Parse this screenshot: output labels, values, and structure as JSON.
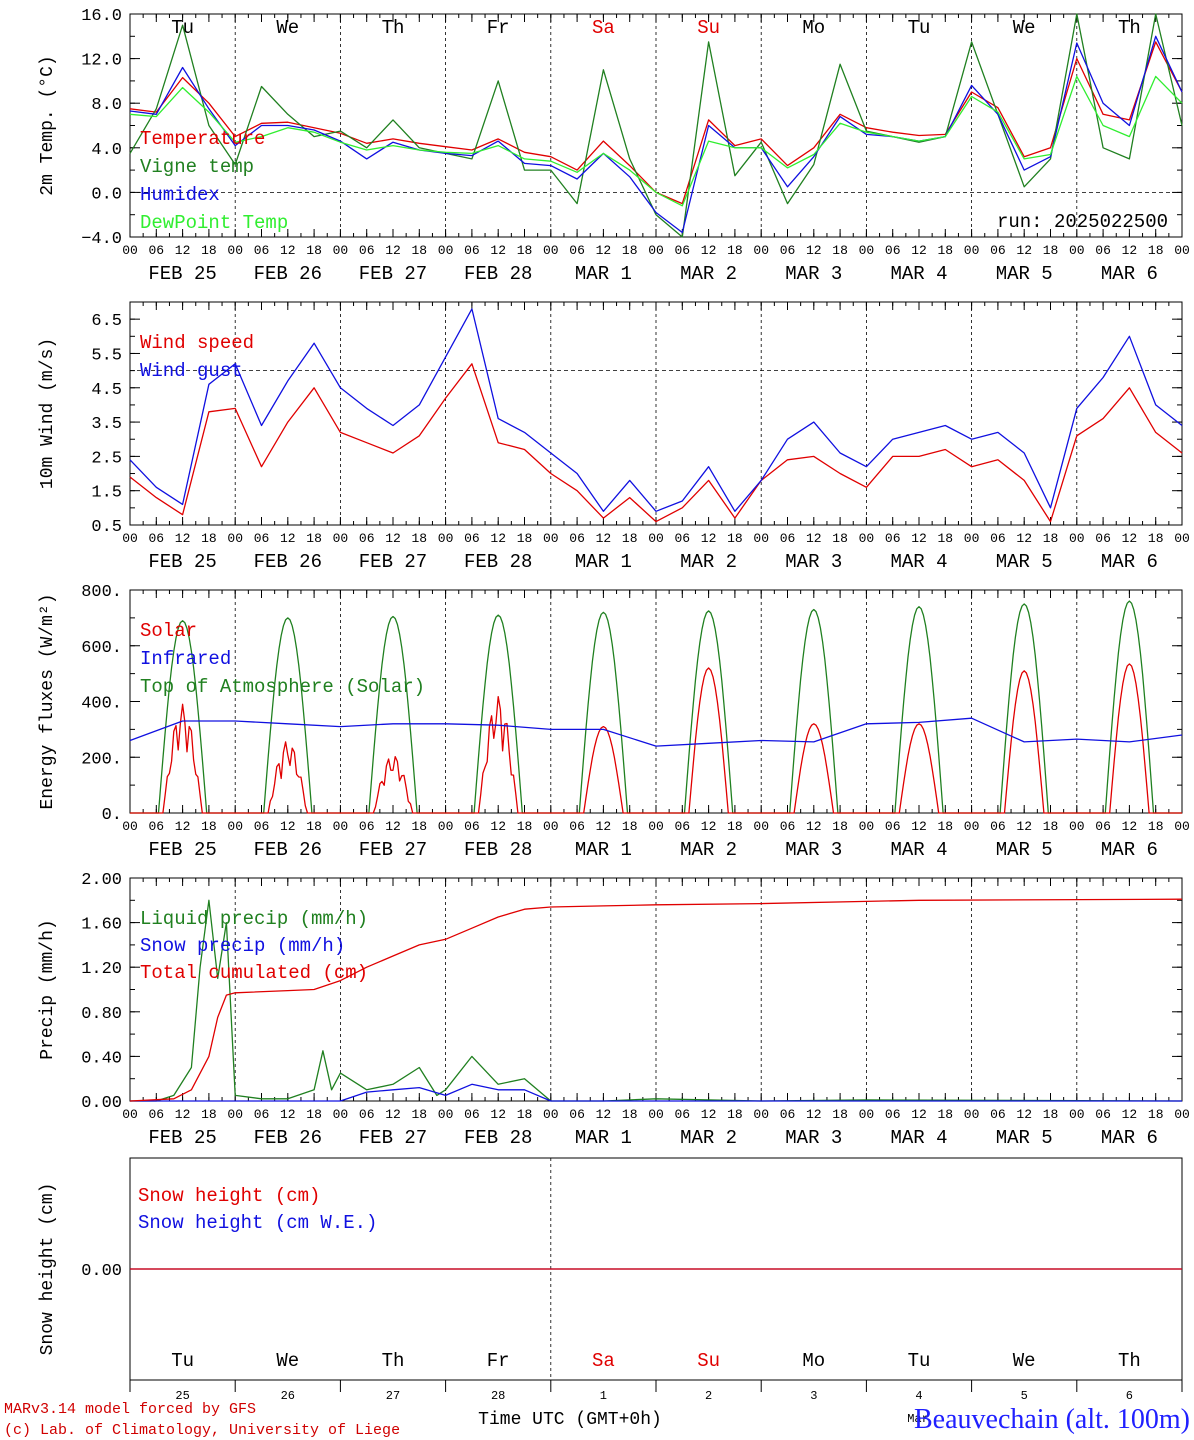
{
  "colors": {
    "red": "#e00000",
    "green": "#208020",
    "blue": "#1010e0",
    "lime": "#30ee30",
    "axis": "#000000",
    "site": "#2020ff"
  },
  "hour_ticks": [
    "00",
    "06",
    "12",
    "18"
  ],
  "final_tick": "00",
  "date_labels": [
    "FEB 25",
    "FEB 26",
    "FEB 27",
    "FEB 28",
    "MAR  1",
    "MAR  2",
    "MAR  3",
    "MAR  4",
    "MAR  5",
    "MAR  6"
  ],
  "weekdays": [
    {
      "label": "Tu",
      "weekend": false
    },
    {
      "label": "We",
      "weekend": false
    },
    {
      "label": "Th",
      "weekend": false
    },
    {
      "label": "Fr",
      "weekend": false
    },
    {
      "label": "Sa",
      "weekend": true
    },
    {
      "label": "Su",
      "weekend": true
    },
    {
      "label": "Mo",
      "weekend": false
    },
    {
      "label": "Tu",
      "weekend": false
    },
    {
      "label": "We",
      "weekend": false
    },
    {
      "label": "Th",
      "weekend": false
    }
  ],
  "day_numbers": [
    "25",
    "26",
    "27",
    "28",
    "1",
    "2",
    "3",
    "4",
    "5",
    "6"
  ],
  "footer": {
    "model": "MARv3.14 model forced by GFS",
    "copyright": "(c) Lab. of Climatology, University of Liege",
    "time_label": "Time UTC (GMT+0h)",
    "month_label": "Mar",
    "site": "Beauvechain (alt. 100m)"
  },
  "chart_data": [
    {
      "type": "line",
      "ylabel": "2m Temp. (°C)",
      "ylim": [
        -4,
        16
      ],
      "yticks": [
        "−4.0",
        "0.0",
        "4.0",
        "8.0",
        "12.0",
        "16.0"
      ],
      "annotation": "run: 2025022500",
      "x_unit": "hours since 2025-02-25 00 UTC",
      "series": [
        {
          "name": "Temperature",
          "color": "red",
          "x": [
            0,
            6,
            12,
            18,
            24,
            30,
            36,
            42,
            48,
            54,
            60,
            66,
            72,
            78,
            84,
            90,
            96,
            102,
            108,
            114,
            120,
            126,
            132,
            138,
            144,
            150,
            156,
            162,
            168,
            174,
            180,
            186,
            192,
            198,
            204,
            210,
            216,
            222,
            228,
            234,
            240
          ],
          "y": [
            7.5,
            7.2,
            10.3,
            8.0,
            5.0,
            6.2,
            6.3,
            5.8,
            5.3,
            4.4,
            4.8,
            4.4,
            4.1,
            3.8,
            4.8,
            3.6,
            3.2,
            2.0,
            4.6,
            2.4,
            0.0,
            -1.0,
            6.5,
            4.2,
            4.8,
            2.4,
            4.0,
            7.0,
            5.8,
            5.4,
            5.1,
            5.2,
            9.0,
            7.6,
            3.2,
            4.0,
            12.0,
            7.0,
            6.5,
            13.5,
            9.0
          ]
        },
        {
          "name": "Vigne temp",
          "color": "green",
          "x": [
            0,
            6,
            12,
            18,
            24,
            30,
            36,
            42,
            48,
            54,
            60,
            66,
            72,
            78,
            84,
            90,
            96,
            102,
            108,
            114,
            120,
            126,
            132,
            138,
            144,
            150,
            156,
            162,
            168,
            174,
            180,
            186,
            192,
            198,
            204,
            210,
            216,
            222,
            228,
            234,
            240
          ],
          "y": [
            3.5,
            7.5,
            15.0,
            6.0,
            2.5,
            9.5,
            7.0,
            5.0,
            5.5,
            4.0,
            6.5,
            4.0,
            3.5,
            3.0,
            10.0,
            2.0,
            2.0,
            -1.0,
            11.0,
            3.0,
            -2.0,
            -4.0,
            13.5,
            1.5,
            4.5,
            -1.0,
            2.5,
            11.5,
            5.5,
            5.0,
            4.5,
            5.0,
            13.5,
            7.0,
            0.5,
            3.0,
            16.0,
            4.0,
            3.0,
            16.0,
            6.0
          ]
        },
        {
          "name": "Humidex",
          "color": "blue",
          "x": [
            0,
            6,
            12,
            18,
            24,
            30,
            36,
            42,
            48,
            54,
            60,
            66,
            72,
            78,
            84,
            90,
            96,
            102,
            108,
            114,
            120,
            126,
            132,
            138,
            144,
            150,
            156,
            162,
            168,
            174,
            180,
            186,
            192,
            198,
            204,
            210,
            216,
            222,
            228,
            234,
            240
          ],
          "y": [
            7.3,
            7.0,
            11.2,
            7.5,
            4.2,
            6.0,
            6.0,
            5.6,
            4.6,
            3.0,
            4.5,
            3.8,
            3.5,
            3.3,
            4.6,
            2.6,
            2.4,
            1.2,
            3.5,
            1.4,
            -1.8,
            -3.6,
            6.0,
            4.0,
            4.0,
            0.5,
            3.2,
            6.8,
            5.2,
            5.0,
            4.6,
            5.0,
            9.6,
            7.0,
            2.0,
            3.2,
            13.4,
            8.0,
            6.0,
            14.0,
            9.0
          ]
        },
        {
          "name": "DewPoint Temp",
          "color": "lime",
          "x": [
            0,
            6,
            12,
            18,
            24,
            30,
            36,
            42,
            48,
            54,
            60,
            66,
            72,
            78,
            84,
            90,
            96,
            102,
            108,
            114,
            120,
            126,
            132,
            138,
            144,
            150,
            156,
            162,
            168,
            174,
            180,
            186,
            192,
            198,
            204,
            210,
            216,
            222,
            228,
            234,
            240
          ],
          "y": [
            7.0,
            6.8,
            9.4,
            7.2,
            4.5,
            5.0,
            5.8,
            5.4,
            4.5,
            3.8,
            4.2,
            3.8,
            3.6,
            3.5,
            4.2,
            3.0,
            2.8,
            1.8,
            3.5,
            2.0,
            0.0,
            -1.2,
            4.6,
            4.0,
            4.0,
            2.2,
            3.4,
            6.2,
            5.4,
            5.0,
            4.6,
            5.0,
            8.6,
            7.2,
            3.0,
            3.4,
            10.4,
            6.0,
            5.0,
            10.4,
            8.0
          ]
        }
      ]
    },
    {
      "type": "line",
      "ylabel": "10m Wind (m/s)",
      "ylim": [
        0.5,
        7.0
      ],
      "yticks": [
        "0.5",
        "1.5",
        "2.5",
        "3.5",
        "4.5",
        "5.5",
        "6.5"
      ],
      "refline": 5.0,
      "x_unit": "hours since 2025-02-25 00 UTC",
      "series": [
        {
          "name": "Wind speed",
          "color": "red",
          "x": [
            0,
            6,
            12,
            18,
            24,
            30,
            36,
            42,
            48,
            54,
            60,
            66,
            72,
            78,
            84,
            90,
            96,
            102,
            108,
            114,
            120,
            126,
            132,
            138,
            144,
            150,
            156,
            162,
            168,
            174,
            180,
            186,
            192,
            198,
            204,
            210,
            216,
            222,
            228,
            234,
            240
          ],
          "y": [
            1.9,
            1.3,
            0.8,
            3.8,
            3.9,
            2.2,
            3.5,
            4.5,
            3.2,
            2.9,
            2.6,
            3.1,
            4.2,
            5.2,
            2.9,
            2.7,
            2.0,
            1.5,
            0.7,
            1.3,
            0.6,
            1.0,
            1.8,
            0.7,
            1.8,
            2.4,
            2.5,
            2.0,
            1.6,
            2.5,
            2.5,
            2.7,
            2.2,
            2.4,
            1.8,
            0.6,
            3.1,
            3.6,
            4.5,
            3.2,
            2.6
          ]
        },
        {
          "name": "Wind gust",
          "color": "blue",
          "x": [
            0,
            6,
            12,
            18,
            24,
            30,
            36,
            42,
            48,
            54,
            60,
            66,
            72,
            78,
            84,
            90,
            96,
            102,
            108,
            114,
            120,
            126,
            132,
            138,
            144,
            150,
            156,
            162,
            168,
            174,
            180,
            186,
            192,
            198,
            204,
            210,
            216,
            222,
            228,
            234,
            240
          ],
          "y": [
            2.4,
            1.6,
            1.1,
            4.6,
            5.2,
            3.4,
            4.7,
            5.8,
            4.5,
            3.9,
            3.4,
            4.0,
            5.4,
            6.8,
            3.6,
            3.2,
            2.6,
            2.0,
            0.9,
            1.8,
            0.9,
            1.2,
            2.2,
            0.9,
            1.8,
            3.0,
            3.5,
            2.6,
            2.2,
            3.0,
            3.2,
            3.4,
            3.0,
            3.2,
            2.6,
            1.0,
            3.9,
            4.8,
            6.0,
            4.0,
            3.4
          ]
        }
      ]
    },
    {
      "type": "line",
      "ylabel": "Energy fluxes (W/m²)",
      "ylim": [
        0,
        800
      ],
      "yticks": [
        "0.",
        "200.",
        "400.",
        "600.",
        "800."
      ],
      "x_unit": "hours since 2025-02-25 00 UTC",
      "series": [
        {
          "name": "Solar",
          "color": "red",
          "peaks": [
            390,
            260,
            210,
            420,
            310,
            520,
            320,
            320,
            510,
            535
          ]
        },
        {
          "name": "Infrared",
          "color": "blue",
          "x": [
            0,
            12,
            24,
            36,
            48,
            60,
            72,
            84,
            96,
            108,
            120,
            132,
            144,
            156,
            168,
            180,
            192,
            204,
            216,
            228,
            240
          ],
          "y": [
            260,
            330,
            330,
            320,
            310,
            320,
            320,
            315,
            300,
            300,
            240,
            250,
            260,
            255,
            320,
            325,
            340,
            255,
            265,
            255,
            280
          ]
        },
        {
          "name": "Top of Atmosphere (Solar)",
          "color": "green",
          "peaks": [
            690,
            700,
            705,
            710,
            720,
            725,
            730,
            740,
            750,
            760
          ]
        }
      ]
    },
    {
      "type": "line",
      "ylabel": "Precip (mm/h)",
      "ylim": [
        0,
        2.0
      ],
      "yticks": [
        "0.00",
        "0.40",
        "0.80",
        "1.20",
        "1.60",
        "2.00"
      ],
      "x_unit": "hours since 2025-02-25 00 UTC",
      "series": [
        {
          "name": "Liquid precip (mm/h)",
          "color": "green",
          "x": [
            0,
            6,
            10,
            14,
            16,
            18,
            20,
            22,
            24,
            30,
            36,
            42,
            44,
            46,
            48,
            54,
            60,
            66,
            70,
            72,
            78,
            84,
            90,
            96,
            102,
            108,
            120,
            144,
            168,
            240
          ],
          "y": [
            0,
            0,
            0.05,
            0.3,
            1.2,
            1.8,
            1.1,
            1.6,
            0.05,
            0.02,
            0.02,
            0.1,
            0.45,
            0.1,
            0.25,
            0.1,
            0.15,
            0.3,
            0.05,
            0.1,
            0.4,
            0.15,
            0.2,
            0,
            0,
            0,
            0.02,
            0,
            0.01,
            0
          ]
        },
        {
          "name": "Snow precip (mm/h)",
          "color": "blue",
          "x": [
            0,
            48,
            54,
            60,
            66,
            72,
            78,
            84,
            90,
            96,
            240
          ],
          "y": [
            0,
            0,
            0.08,
            0.1,
            0.12,
            0.05,
            0.15,
            0.1,
            0.1,
            0,
            0
          ]
        },
        {
          "name": "Total cumulated (cm)",
          "color": "red",
          "x": [
            0,
            10,
            14,
            18,
            20,
            22,
            24,
            36,
            42,
            48,
            54,
            60,
            66,
            72,
            78,
            84,
            90,
            96,
            108,
            120,
            144,
            168,
            180,
            240
          ],
          "y": [
            0,
            0.02,
            0.1,
            0.4,
            0.75,
            0.95,
            0.97,
            0.99,
            1.0,
            1.08,
            1.2,
            1.3,
            1.4,
            1.45,
            1.55,
            1.65,
            1.72,
            1.74,
            1.75,
            1.76,
            1.77,
            1.79,
            1.8,
            1.81
          ]
        }
      ]
    },
    {
      "type": "line",
      "ylabel": "Snow height (cm)",
      "ylim": [
        -1,
        1
      ],
      "yticks": [
        "0.00"
      ],
      "x_unit": "hours since 2025-02-25 00 UTC",
      "series": [
        {
          "name": "Snow height (cm)",
          "color": "red",
          "x": [
            0,
            240
          ],
          "y": [
            0,
            0
          ]
        },
        {
          "name": "Snow height (cm W.E.)",
          "color": "blue",
          "x": [
            0,
            240
          ],
          "y": [
            0,
            0
          ]
        }
      ]
    }
  ]
}
